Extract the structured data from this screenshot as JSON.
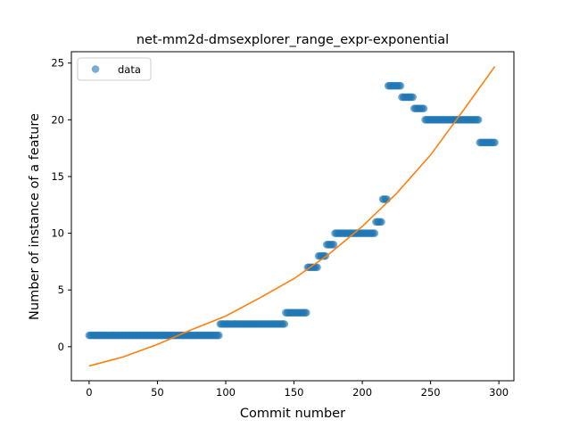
{
  "chart_data": {
    "type": "scatter",
    "title": "net-mm2d-dmsexplorer_range_expr-exponential",
    "xlabel": "Commit number",
    "ylabel": "Number of instance of a feature",
    "xlim": [
      -13,
      311
    ],
    "ylim": [
      -3,
      26
    ],
    "xticks": [
      0,
      50,
      100,
      150,
      200,
      250,
      300
    ],
    "yticks": [
      0,
      5,
      10,
      15,
      20,
      25
    ],
    "grid": false,
    "legend": {
      "position": "top-left",
      "entries": [
        "data"
      ]
    },
    "colors": {
      "points": "#1f77b4",
      "fit": "#ff7f0e"
    },
    "series": [
      {
        "name": "data",
        "kind": "points",
        "segments": [
          {
            "x_start": 0,
            "x_end": 95,
            "y": 1
          },
          {
            "x_start": 96,
            "x_end": 143,
            "y": 2
          },
          {
            "x_start": 144,
            "x_end": 159,
            "y": 3
          },
          {
            "x_start": 160,
            "x_end": 167,
            "y": 7
          },
          {
            "x_start": 168,
            "x_end": 173,
            "y": 8
          },
          {
            "x_start": 174,
            "x_end": 179,
            "y": 9
          },
          {
            "x_start": 180,
            "x_end": 209,
            "y": 10
          },
          {
            "x_start": 210,
            "x_end": 214,
            "y": 11
          },
          {
            "x_start": 215,
            "x_end": 218,
            "y": 13
          },
          {
            "x_start": 219,
            "x_end": 228,
            "y": 23
          },
          {
            "x_start": 229,
            "x_end": 237,
            "y": 22
          },
          {
            "x_start": 238,
            "x_end": 245,
            "y": 21
          },
          {
            "x_start": 246,
            "x_end": 285,
            "y": 20
          },
          {
            "x_start": 286,
            "x_end": 297,
            "y": 18
          }
        ]
      },
      {
        "kind": "line",
        "x": [
          0,
          25,
          50,
          75,
          100,
          125,
          150,
          175,
          200,
          225,
          250,
          275,
          297
        ],
        "y": [
          -1.7,
          -0.9,
          0.2,
          1.5,
          2.7,
          4.3,
          6.0,
          8.1,
          10.6,
          13.5,
          16.9,
          21.0,
          24.7
        ]
      }
    ]
  }
}
